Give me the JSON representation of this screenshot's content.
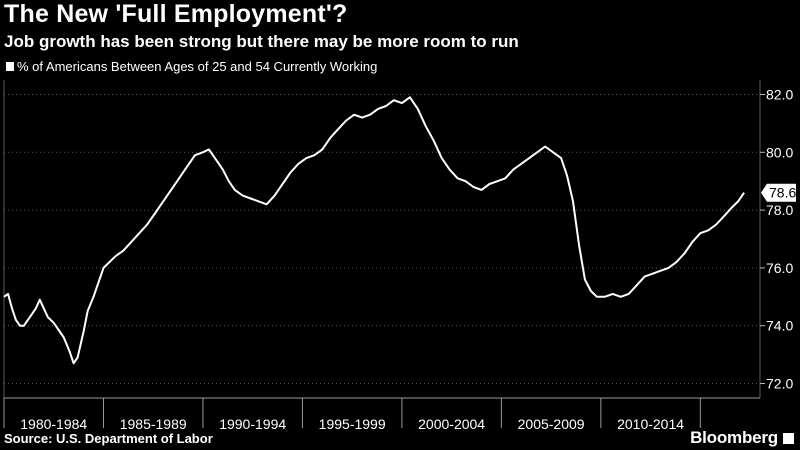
{
  "title": "The New 'Full Employment'?",
  "subtitle": "Job growth has been strong but there may be more room to run",
  "source": "Source: U.S. Department of Labor",
  "brand": "Bloomberg",
  "colors": {
    "background": "#000000",
    "line": "#ffffff",
    "grid": "#5a5a5a",
    "text": "#ffffff"
  },
  "chart_data": {
    "type": "line",
    "title": "The New 'Full Employment'?",
    "subtitle": "Job growth has been strong but there may be more room to run",
    "series": [
      {
        "name": "% of Americans Between Ages of 25 and 54 Currently Working",
        "points": [
          [
            1980.0,
            75.0
          ],
          [
            1980.2,
            75.1
          ],
          [
            1980.4,
            74.6
          ],
          [
            1980.6,
            74.2
          ],
          [
            1980.8,
            74.0
          ],
          [
            1981.0,
            74.0
          ],
          [
            1981.2,
            74.2
          ],
          [
            1981.4,
            74.4
          ],
          [
            1981.6,
            74.6
          ],
          [
            1981.8,
            74.9
          ],
          [
            1982.0,
            74.6
          ],
          [
            1982.2,
            74.3
          ],
          [
            1982.5,
            74.1
          ],
          [
            1982.8,
            73.8
          ],
          [
            1983.0,
            73.6
          ],
          [
            1983.3,
            73.1
          ],
          [
            1983.5,
            72.7
          ],
          [
            1983.7,
            72.9
          ],
          [
            1984.0,
            73.8
          ],
          [
            1984.2,
            74.5
          ],
          [
            1984.5,
            75.0
          ],
          [
            1984.8,
            75.6
          ],
          [
            1985.0,
            76.0
          ],
          [
            1985.3,
            76.2
          ],
          [
            1985.6,
            76.4
          ],
          [
            1986.0,
            76.6
          ],
          [
            1986.4,
            76.9
          ],
          [
            1986.8,
            77.2
          ],
          [
            1987.2,
            77.5
          ],
          [
            1987.6,
            77.9
          ],
          [
            1988.0,
            78.3
          ],
          [
            1988.4,
            78.7
          ],
          [
            1988.8,
            79.1
          ],
          [
            1989.2,
            79.5
          ],
          [
            1989.6,
            79.9
          ],
          [
            1990.0,
            80.0
          ],
          [
            1990.3,
            80.1
          ],
          [
            1990.6,
            79.8
          ],
          [
            1991.0,
            79.4
          ],
          [
            1991.3,
            79.0
          ],
          [
            1991.6,
            78.7
          ],
          [
            1992.0,
            78.5
          ],
          [
            1992.4,
            78.4
          ],
          [
            1992.8,
            78.3
          ],
          [
            1993.2,
            78.2
          ],
          [
            1993.6,
            78.5
          ],
          [
            1994.0,
            78.9
          ],
          [
            1994.4,
            79.3
          ],
          [
            1994.8,
            79.6
          ],
          [
            1995.2,
            79.8
          ],
          [
            1995.6,
            79.9
          ],
          [
            1996.0,
            80.1
          ],
          [
            1996.4,
            80.5
          ],
          [
            1996.8,
            80.8
          ],
          [
            1997.2,
            81.1
          ],
          [
            1997.6,
            81.3
          ],
          [
            1998.0,
            81.2
          ],
          [
            1998.4,
            81.3
          ],
          [
            1998.8,
            81.5
          ],
          [
            1999.2,
            81.6
          ],
          [
            1999.6,
            81.8
          ],
          [
            2000.0,
            81.7
          ],
          [
            2000.4,
            81.9
          ],
          [
            2000.8,
            81.5
          ],
          [
            2001.2,
            80.9
          ],
          [
            2001.6,
            80.4
          ],
          [
            2002.0,
            79.8
          ],
          [
            2002.4,
            79.4
          ],
          [
            2002.8,
            79.1
          ],
          [
            2003.2,
            79.0
          ],
          [
            2003.6,
            78.8
          ],
          [
            2004.0,
            78.7
          ],
          [
            2004.4,
            78.9
          ],
          [
            2004.8,
            79.0
          ],
          [
            2005.2,
            79.1
          ],
          [
            2005.6,
            79.4
          ],
          [
            2006.0,
            79.6
          ],
          [
            2006.4,
            79.8
          ],
          [
            2006.8,
            80.0
          ],
          [
            2007.2,
            80.2
          ],
          [
            2007.6,
            80.0
          ],
          [
            2008.0,
            79.8
          ],
          [
            2008.3,
            79.2
          ],
          [
            2008.6,
            78.3
          ],
          [
            2008.9,
            76.8
          ],
          [
            2009.2,
            75.6
          ],
          [
            2009.5,
            75.2
          ],
          [
            2009.8,
            75.0
          ],
          [
            2010.2,
            75.0
          ],
          [
            2010.6,
            75.1
          ],
          [
            2011.0,
            75.0
          ],
          [
            2011.4,
            75.1
          ],
          [
            2011.8,
            75.4
          ],
          [
            2012.2,
            75.7
          ],
          [
            2012.6,
            75.8
          ],
          [
            2013.0,
            75.9
          ],
          [
            2013.4,
            76.0
          ],
          [
            2013.8,
            76.2
          ],
          [
            2014.2,
            76.5
          ],
          [
            2014.6,
            76.9
          ],
          [
            2015.0,
            77.2
          ],
          [
            2015.4,
            77.3
          ],
          [
            2015.8,
            77.5
          ],
          [
            2016.2,
            77.8
          ],
          [
            2016.6,
            78.1
          ],
          [
            2016.9,
            78.3
          ],
          [
            2017.2,
            78.6
          ]
        ]
      }
    ],
    "ylim": [
      71.5,
      82.5
    ],
    "yticks": [
      72.0,
      74.0,
      76.0,
      78.0,
      80.0,
      82.0
    ],
    "ytick_labels": [
      "72.0",
      "74.0",
      "76.0",
      "78.0",
      "80.0",
      "82.0"
    ],
    "xlim": [
      1980.0,
      2018.0
    ],
    "x_periods": [
      {
        "label": "1980-1984",
        "from": 1980,
        "to": 1985
      },
      {
        "label": "1985-1989",
        "from": 1985,
        "to": 1990
      },
      {
        "label": "1990-1994",
        "from": 1990,
        "to": 1995
      },
      {
        "label": "1995-1999",
        "from": 1995,
        "to": 2000
      },
      {
        "label": "2000-2004",
        "from": 2000,
        "to": 2005
      },
      {
        "label": "2005-2009",
        "from": 2005,
        "to": 2010
      },
      {
        "label": "2010-2014",
        "from": 2010,
        "to": 2015
      }
    ],
    "last_value_label": "78.6",
    "grid": true,
    "legend": "top-left"
  }
}
